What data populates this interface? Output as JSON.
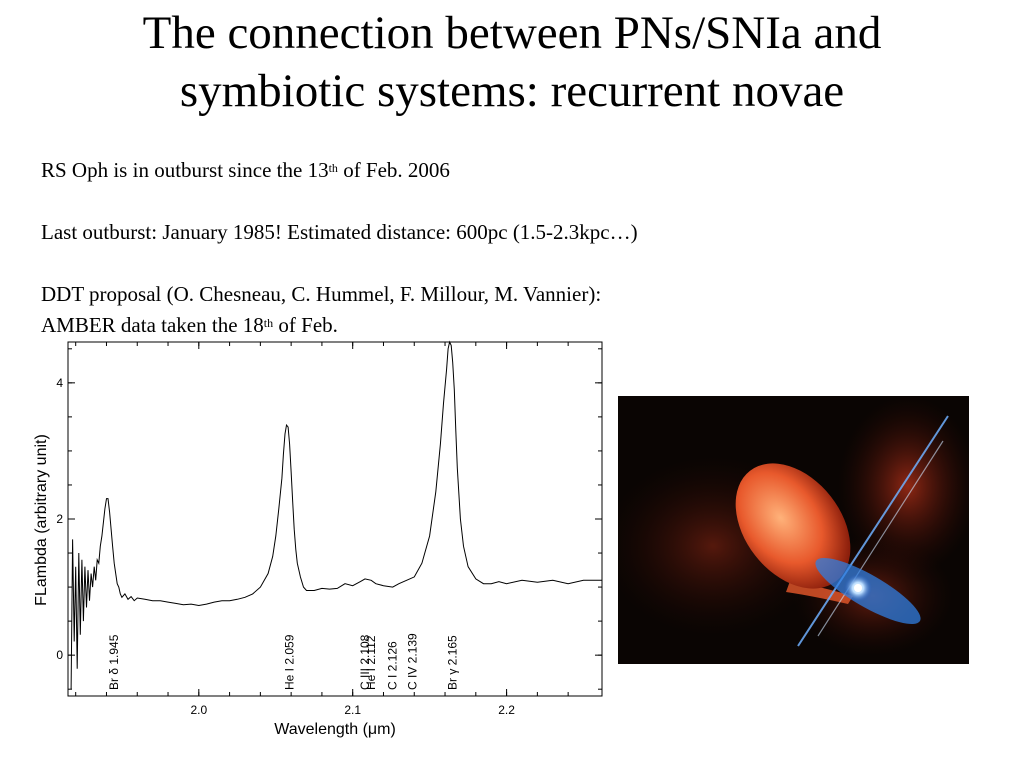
{
  "slide": {
    "title_lines": [
      "The connection between PNs/SNIa and",
      "symbiotic systems: recurrent novae"
    ],
    "line1": {
      "prefix": "RS Oph is in outburst since the 13",
      "sup": "th",
      "suffix": " of Feb. 2006"
    },
    "line2": "Last outburst: January 1985! Estimated distance: 600pc (1.5-2.3kpc…)",
    "line3": "DDT proposal (O. Chesneau, C. Hummel, F. Millour, M. Vannier):",
    "line4": {
      "prefix": "AMBER data taken the 18",
      "sup": "th",
      "suffix": " of Feb."
    }
  },
  "chart_data": {
    "type": "line",
    "xlabel": "Wavelength (μm)",
    "ylabel": "FLambda (arbitrary unit)",
    "xlim": [
      1.915,
      2.262
    ],
    "ylim": [
      -0.6,
      4.6
    ],
    "xticks": [
      2.0,
      2.1,
      2.2
    ],
    "xtick_labels": [
      "2.0",
      "2.1",
      "2.2"
    ],
    "yticks": [
      0,
      2,
      4
    ],
    "ytick_labels": [
      "0",
      "2",
      "4"
    ],
    "series": [
      {
        "x": [
          1.917,
          1.918,
          1.919,
          1.92,
          1.921,
          1.922,
          1.923,
          1.924,
          1.925,
          1.926,
          1.927,
          1.928,
          1.929,
          1.93,
          1.931,
          1.932,
          1.933,
          1.934,
          1.935,
          1.936,
          1.937,
          1.938,
          1.939,
          1.94,
          1.941,
          1.942,
          1.943,
          1.944,
          1.945,
          1.946,
          1.947,
          1.948,
          1.949,
          1.95,
          1.952,
          1.954,
          1.956,
          1.958,
          1.96,
          1.965,
          1.97,
          1.975,
          1.98,
          1.985,
          1.99,
          1.995,
          2.0,
          2.005,
          2.01,
          2.015,
          2.02,
          2.025,
          2.03,
          2.035,
          2.04,
          2.045,
          2.048,
          2.05,
          2.052,
          2.054,
          2.055,
          2.056,
          2.057,
          2.058,
          2.059,
          2.06,
          2.061,
          2.062,
          2.063,
          2.064,
          2.066,
          2.068,
          2.07,
          2.075,
          2.08,
          2.085,
          2.09,
          2.095,
          2.1,
          2.105,
          2.108,
          2.112,
          2.115,
          2.12,
          2.126,
          2.13,
          2.135,
          2.14,
          2.145,
          2.15,
          2.154,
          2.157,
          2.159,
          2.161,
          2.162,
          2.163,
          2.164,
          2.165,
          2.166,
          2.167,
          2.168,
          2.17,
          2.172,
          2.175,
          2.18,
          2.185,
          2.19,
          2.195,
          2.2,
          2.21,
          2.22,
          2.23,
          2.24,
          2.25,
          2.262
        ],
        "y": [
          -0.5,
          1.7,
          0.2,
          1.3,
          -0.2,
          1.5,
          0.3,
          1.4,
          0.5,
          1.3,
          0.7,
          1.25,
          0.8,
          1.2,
          1.0,
          1.3,
          1.1,
          1.4,
          1.35,
          1.6,
          1.75,
          1.95,
          2.15,
          2.3,
          2.3,
          2.1,
          1.85,
          1.6,
          1.35,
          1.2,
          1.05,
          1.0,
          0.9,
          0.85,
          0.9,
          0.82,
          0.86,
          0.8,
          0.84,
          0.82,
          0.8,
          0.8,
          0.78,
          0.76,
          0.74,
          0.75,
          0.73,
          0.75,
          0.78,
          0.8,
          0.8,
          0.82,
          0.85,
          0.9,
          1.0,
          1.2,
          1.45,
          1.75,
          2.15,
          2.6,
          2.95,
          3.25,
          3.38,
          3.35,
          3.1,
          2.7,
          2.25,
          1.85,
          1.55,
          1.35,
          1.15,
          1.0,
          0.95,
          0.95,
          0.98,
          0.97,
          0.98,
          1.05,
          1.02,
          1.08,
          1.12,
          1.1,
          1.05,
          1.02,
          1.0,
          1.05,
          1.1,
          1.15,
          1.35,
          1.75,
          2.4,
          3.1,
          3.7,
          4.2,
          4.5,
          4.6,
          4.55,
          4.3,
          3.9,
          3.3,
          2.75,
          2.0,
          1.6,
          1.3,
          1.12,
          1.05,
          1.05,
          1.08,
          1.05,
          1.1,
          1.07,
          1.1,
          1.05,
          1.1,
          1.1
        ]
      }
    ],
    "line_labels": [
      {
        "x": 1.945,
        "text": "Br δ 1.945"
      },
      {
        "x": 2.059,
        "text": "He I 2.059"
      },
      {
        "x": 2.108,
        "text": "C III 2.108"
      },
      {
        "x": 2.112,
        "text": "He I 2.112"
      },
      {
        "x": 2.126,
        "text": "C I 2.126"
      },
      {
        "x": 2.139,
        "text": "C IV 2.139"
      },
      {
        "x": 2.165,
        "text": "Br γ 2.165"
      }
    ]
  }
}
